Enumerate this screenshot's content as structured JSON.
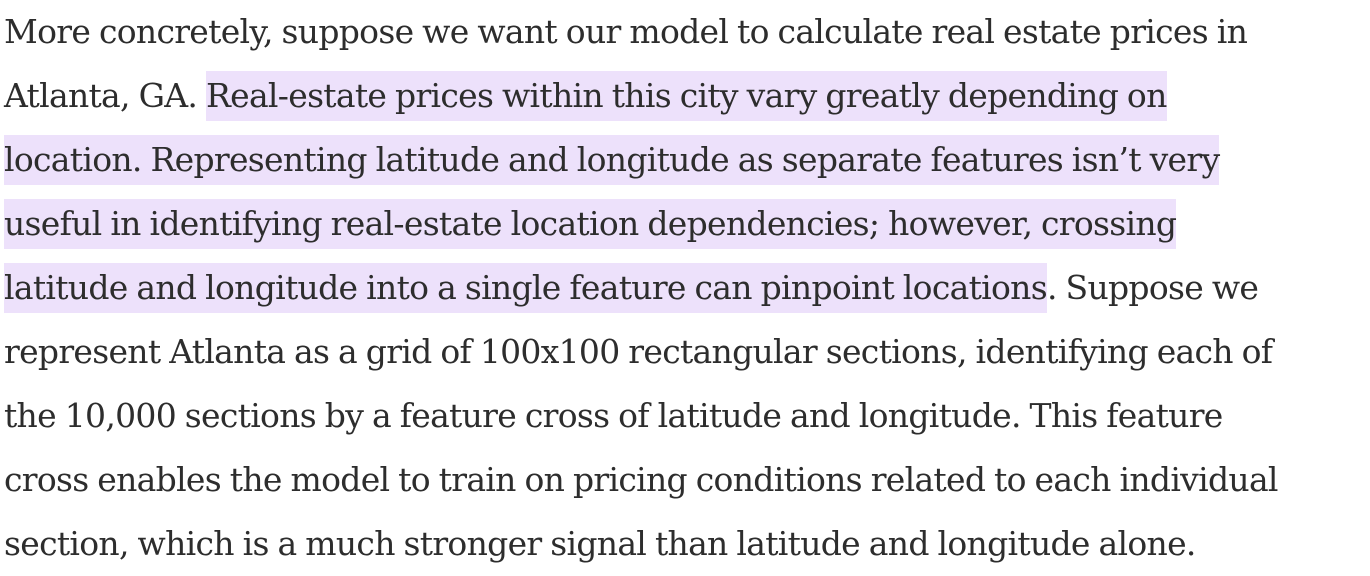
{
  "colors": {
    "text": "#2d2d2d",
    "highlight": "#ede1fb",
    "background": "#ffffff"
  },
  "lines": [
    {
      "plain": "More concretely, suppose we want our model to calculate real estate prices in"
    },
    {
      "plain": "Atlanta, GA. ",
      "highlight": "Real-estate prices within this city vary greatly depending on"
    },
    {
      "highlight": "location. Representing latitude and longitude as separate features isn’t very"
    },
    {
      "highlight": "useful in identifying real-estate location dependencies; however, crossing"
    },
    {
      "highlight": "latitude and longitude into a single feature can pinpoint locations",
      "plain": ". Suppose we"
    },
    {
      "plain": "represent Atlanta as a grid of 100x100 rectangular sections, identifying each of"
    },
    {
      "plain": "the 10,000 sections by a feature cross of latitude and longitude. This feature"
    },
    {
      "plain": "cross enables the model to train on pricing conditions related to each individual"
    },
    {
      "plain": "section, which is a much stronger signal than latitude and longitude alone."
    }
  ]
}
